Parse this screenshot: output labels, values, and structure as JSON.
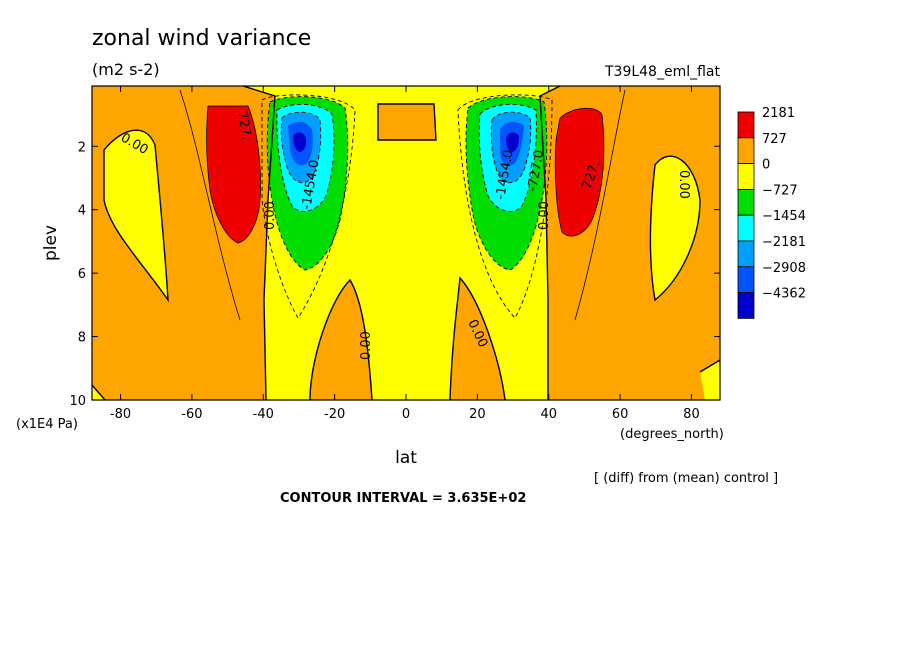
{
  "chart_data": {
    "type": "contour",
    "title": "zonal wind variance",
    "units": "(m2 s-2)",
    "run_label": "T39L48_eml_flat",
    "xlabel": "lat",
    "xunits": "(degrees_north)",
    "ylabel": "plev",
    "yunits": "(x1E4 Pa)",
    "xlim": [
      -88,
      88
    ],
    "ylim": [
      10,
      0.1
    ],
    "x_ticks": [
      -80,
      -60,
      -40,
      -20,
      0,
      20,
      40,
      60,
      80
    ],
    "y_ticks": [
      2,
      4,
      6,
      8,
      10
    ],
    "contour_interval_text": "CONTOUR INTERVAL = 3.635E+02",
    "note": "[ (diff) from (mean) control ]",
    "contour_labels": [
      "0.00",
      "727.",
      "-1454.0",
      "-727.0"
    ],
    "legend": {
      "levels": [
        "2181",
        "727",
        "0",
        "-727",
        "-1454",
        "-2181",
        "-2908",
        "-4362"
      ],
      "colors": [
        "#ee0000",
        "#ffa500",
        "#ffff00",
        "#00dd00",
        "#00ffff",
        "#00a0ff",
        "#0055ff",
        "#0000cc"
      ]
    },
    "features": [
      {
        "kind": "positive max",
        "value_band": "727 to 2181",
        "lat": -47,
        "plev": 2.5
      },
      {
        "kind": "negative min",
        "value_band": "< -2908",
        "lat": -30,
        "plev": 2.0
      },
      {
        "kind": "negative min",
        "value_band": "< -2908",
        "lat": 30,
        "plev": 2.0
      },
      {
        "kind": "positive max",
        "value_band": "727 to 2181",
        "lat": 47,
        "plev": 2.5
      }
    ]
  }
}
